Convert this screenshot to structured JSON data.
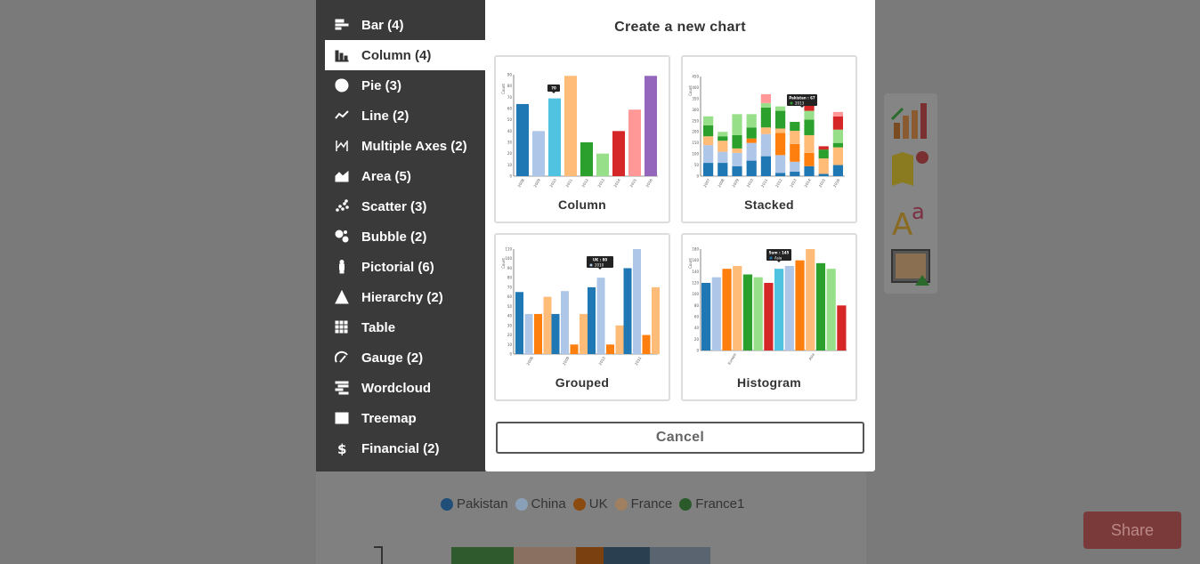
{
  "modal": {
    "title": "Create a new chart",
    "cancel_label": "Cancel",
    "cards": [
      {
        "label": "Column"
      },
      {
        "label": "Stacked"
      },
      {
        "label": "Grouped"
      },
      {
        "label": "Histogram"
      }
    ]
  },
  "sidebar": {
    "items": [
      {
        "label": "Bar (4)",
        "icon": "bar-icon"
      },
      {
        "label": "Column (4)",
        "icon": "column-icon",
        "active": true
      },
      {
        "label": "Pie (3)",
        "icon": "pie-icon"
      },
      {
        "label": "Line (2)",
        "icon": "line-icon"
      },
      {
        "label": "Multiple Axes (2)",
        "icon": "multiple-axes-icon"
      },
      {
        "label": "Area (5)",
        "icon": "area-icon"
      },
      {
        "label": "Scatter (3)",
        "icon": "scatter-icon"
      },
      {
        "label": "Bubble (2)",
        "icon": "bubble-icon"
      },
      {
        "label": "Pictorial (6)",
        "icon": "pictorial-icon"
      },
      {
        "label": "Hierarchy (2)",
        "icon": "hierarchy-icon"
      },
      {
        "label": "Table",
        "icon": "table-icon"
      },
      {
        "label": "Gauge (2)",
        "icon": "gauge-icon"
      },
      {
        "label": "Wordcloud",
        "icon": "wordcloud-icon"
      },
      {
        "label": "Treemap",
        "icon": "treemap-icon"
      },
      {
        "label": "Financial (2)",
        "icon": "financial-icon"
      }
    ]
  },
  "background": {
    "legend": [
      {
        "label": "Pakistan",
        "color": "#1f4e79"
      },
      {
        "label": "China",
        "color": "#8aa0b8"
      },
      {
        "label": "UK",
        "color": "#8a4a10"
      },
      {
        "label": "France",
        "color": "#a08060"
      },
      {
        "label": "France1",
        "color": "#2a5a2a"
      }
    ],
    "share_label": "Share"
  },
  "previews": {
    "column": {
      "ylabel": "Count",
      "yticks": [
        "0",
        "10",
        "20",
        "30",
        "40",
        "50",
        "60",
        "70",
        "80",
        "90"
      ],
      "years": [
        "2008",
        "2009",
        "2010",
        "2011",
        "2012",
        "2013",
        "2014",
        "2015",
        "2016"
      ],
      "values": [
        64,
        40,
        69,
        89,
        30,
        20,
        40,
        59,
        89
      ],
      "colors": [
        "#1f77b4",
        "#aec7e8",
        "#4fc3e0",
        "#ffbb78",
        "#2ca02c",
        "#98df8a",
        "#d62728",
        "#ff9896",
        "#9467bd"
      ],
      "tooltip": "70"
    },
    "stacked": {
      "ylabel": "Count",
      "yticks": [
        "0",
        "50",
        "100",
        "150",
        "200",
        "250",
        "300",
        "350",
        "400",
        "450"
      ],
      "years": [
        "2007",
        "2008",
        "2009",
        "2010",
        "2011",
        "2012",
        "2013",
        "2014",
        "2015",
        "2016"
      ],
      "tooltip_title": "Pakistan : 67",
      "tooltip_series": "2013"
    },
    "grouped": {
      "ylabel": "Count",
      "yticks": [
        "0",
        "10",
        "20",
        "30",
        "40",
        "50",
        "60",
        "70",
        "80",
        "90",
        "100",
        "110"
      ],
      "years": [
        "2008",
        "2009",
        "2010",
        "2011"
      ],
      "tooltip_title": "UK : 80",
      "tooltip_series": "2010"
    },
    "histogram": {
      "ylabel": "Count",
      "yticks": [
        "0",
        "20",
        "40",
        "60",
        "80",
        "100",
        "120",
        "140",
        "160",
        "180"
      ],
      "xticks": [
        "Europe",
        "Asia"
      ],
      "tooltip_title": "Sum : 145",
      "tooltip_series": "Asia"
    }
  }
}
